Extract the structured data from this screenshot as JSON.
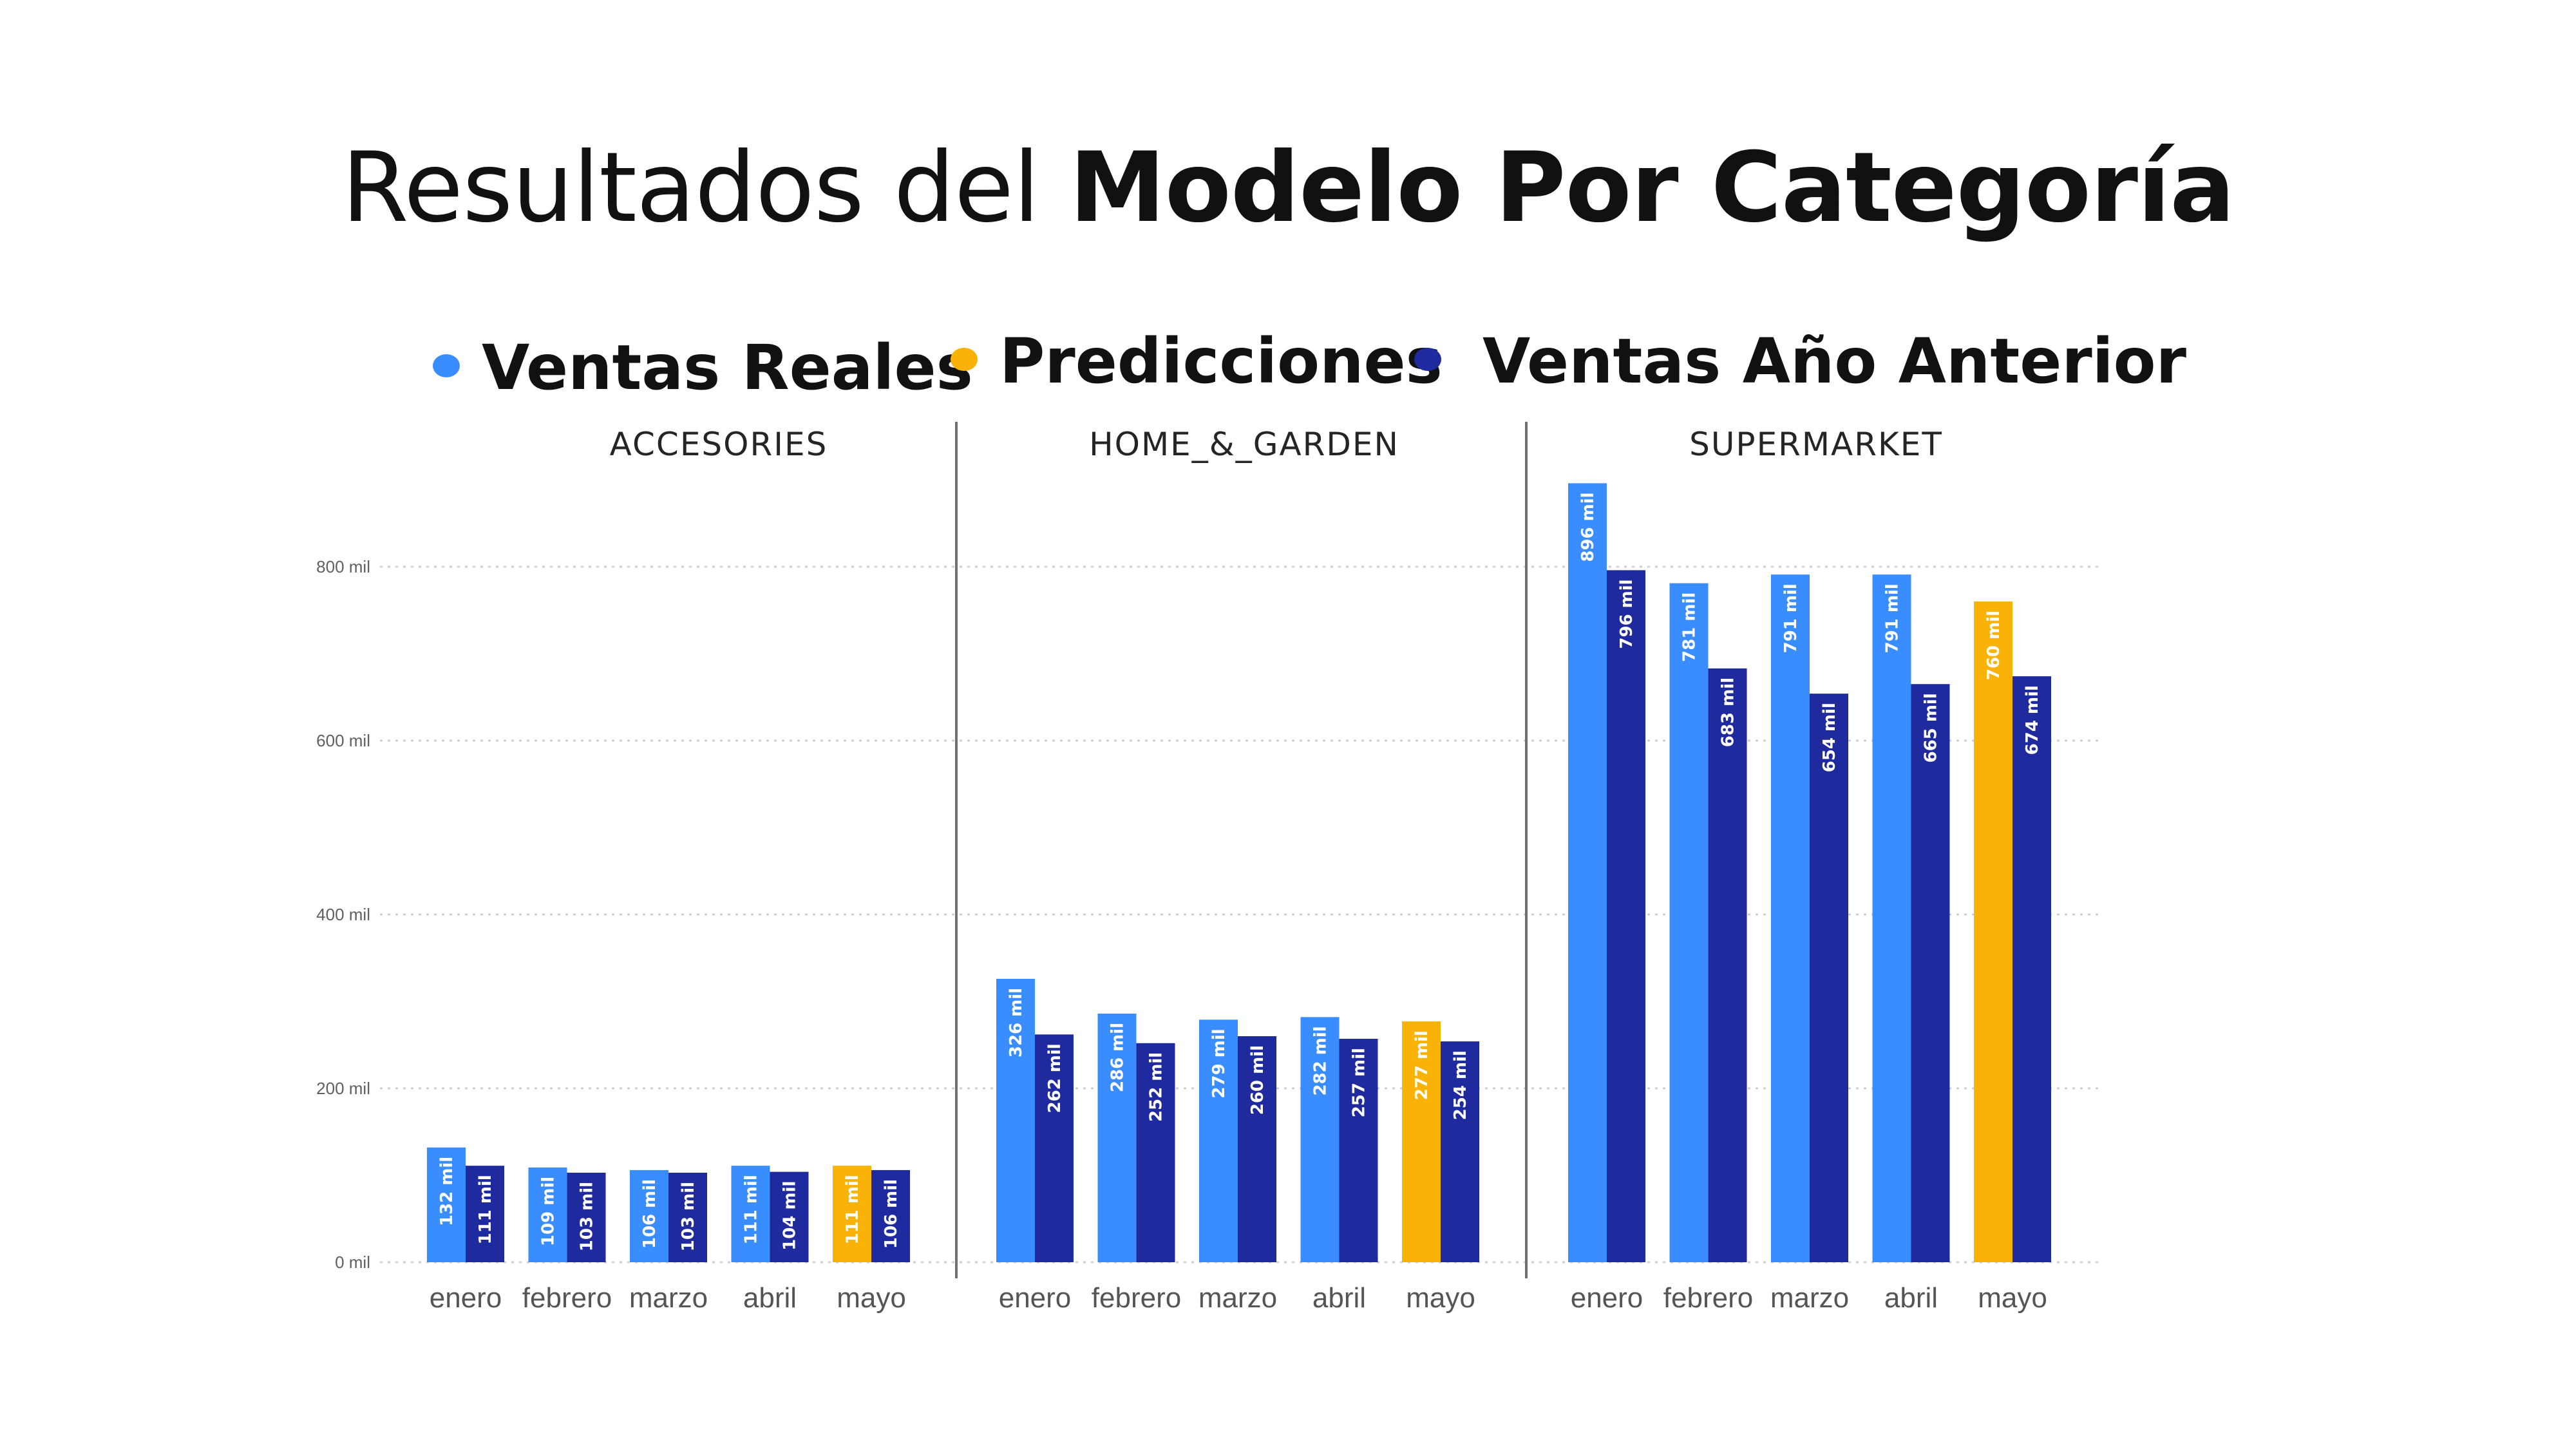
{
  "title": {
    "light": "Resultados del ",
    "bold": "Modelo Por Categoría"
  },
  "legend": [
    {
      "label": "Ventas Reales",
      "color": "#3A8DFF"
    },
    {
      "label": "Predicciones",
      "color": "#F9B208"
    },
    {
      "label": "Ventas Año Anterior",
      "color": "#1F2A9E"
    }
  ],
  "chart_data": {
    "type": "bar",
    "grouping": "clustered",
    "facets": [
      "ACCESORIES",
      "HOME_&_GARDEN",
      "SUPERMARKET"
    ],
    "categories": [
      "enero",
      "febrero",
      "marzo",
      "abril",
      "mayo"
    ],
    "y_ticks": [
      "0 mil",
      "200 mil",
      "400 mil",
      "600 mil",
      "800 mil"
    ],
    "ylim": [
      0,
      800000
    ],
    "grid": "horizontal-dotted",
    "legend_position": "top",
    "note": "first bar of each month is Ventas Reales (enero–abril) or Predicciones (mayo); second bar is Ventas Año Anterior",
    "series": [
      {
        "name": "Ventas Reales",
        "color": "#3A8DFF",
        "values": {
          "ACCESORIES": [
            132000,
            109000,
            106000,
            111000,
            null
          ],
          "HOME_&_GARDEN": [
            326000,
            286000,
            279000,
            282000,
            null
          ],
          "SUPERMARKET": [
            896000,
            781000,
            791000,
            791000,
            null
          ]
        },
        "labels": {
          "ACCESORIES": [
            "132 mil",
            "109 mil",
            "106 mil",
            "111 mil",
            null
          ],
          "HOME_&_GARDEN": [
            "326 mil",
            "286 mil",
            "279 mil",
            "282 mil",
            null
          ],
          "SUPERMARKET": [
            "896 mil",
            "781 mil",
            "791 mil",
            "791 mil",
            null
          ]
        }
      },
      {
        "name": "Predicciones",
        "color": "#F9B208",
        "values": {
          "ACCESORIES": [
            null,
            null,
            null,
            null,
            111000
          ],
          "HOME_&_GARDEN": [
            null,
            null,
            null,
            null,
            277000
          ],
          "SUPERMARKET": [
            null,
            null,
            null,
            null,
            760000
          ]
        },
        "labels": {
          "ACCESORIES": [
            null,
            null,
            null,
            null,
            "111 mil"
          ],
          "HOME_&_GARDEN": [
            null,
            null,
            null,
            null,
            "277 mil"
          ],
          "SUPERMARKET": [
            null,
            null,
            null,
            null,
            "760 mil"
          ]
        }
      },
      {
        "name": "Ventas Año Anterior",
        "color": "#1F2A9E",
        "values": {
          "ACCESORIES": [
            111000,
            103000,
            103000,
            104000,
            106000
          ],
          "HOME_&_GARDEN": [
            262000,
            252000,
            260000,
            257000,
            254000
          ],
          "SUPERMARKET": [
            796000,
            683000,
            654000,
            665000,
            674000
          ]
        },
        "labels": {
          "ACCESORIES": [
            "111 mil",
            "103 mil",
            "103 mil",
            "104 mil",
            "106 mil"
          ],
          "HOME_&_GARDEN": [
            "262 mil",
            "252 mil",
            "260 mil",
            "257 mil",
            "254 mil"
          ],
          "SUPERMARKET": [
            "796 mil",
            "683 mil",
            "654 mil",
            "665 mil",
            "674 mil"
          ]
        }
      }
    ]
  }
}
